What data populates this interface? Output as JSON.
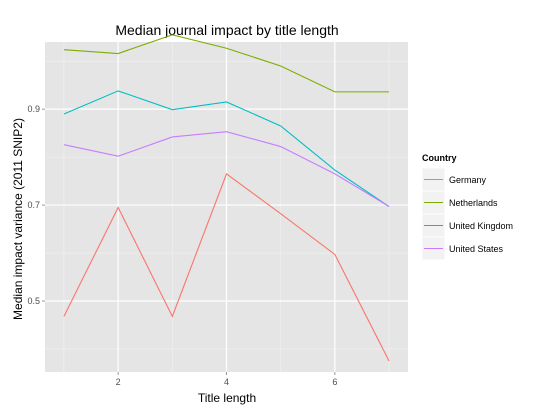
{
  "chart_data": {
    "type": "line",
    "title": "Median journal impact by title length",
    "xlabel": "Title length",
    "ylabel": "Median impact variance (2011 SNIP2)",
    "x": [
      1,
      2,
      3,
      4,
      5,
      6,
      7
    ],
    "xlim": [
      0.65,
      7.35
    ],
    "ylim": [
      0.352,
      1.04
    ],
    "x_ticks": [
      2,
      4,
      6
    ],
    "x_tick_labels": [
      "2",
      "4",
      "6"
    ],
    "y_ticks": [
      0.5,
      0.7,
      0.9
    ],
    "y_tick_labels": [
      "0.5",
      "0.7",
      "0.9"
    ],
    "grid": true,
    "legend_title": "Country",
    "legend_position": "right",
    "series": [
      {
        "name": "Germany",
        "color": "#F8766D",
        "values": [
          0.468,
          0.695,
          0.468,
          0.765,
          0.682,
          0.597,
          0.375
        ]
      },
      {
        "name": "Netherlands",
        "color": "#7CAE00",
        "values": [
          1.024,
          1.016,
          1.055,
          1.027,
          0.99,
          0.936,
          0.936
        ]
      },
      {
        "name": "United Kingdom",
        "color": "#00BFC4",
        "values": [
          0.89,
          0.938,
          0.899,
          0.915,
          0.865,
          0.773,
          0.697
        ]
      },
      {
        "name": "United States",
        "color": "#C77CFF",
        "values": [
          0.826,
          0.802,
          0.842,
          0.853,
          0.822,
          0.765,
          0.697
        ]
      }
    ]
  }
}
